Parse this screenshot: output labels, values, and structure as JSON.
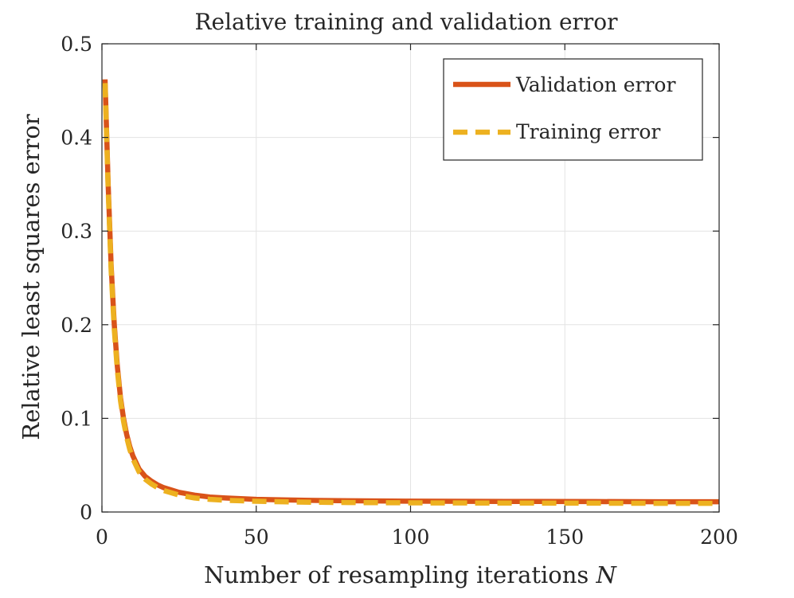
{
  "chart_data": {
    "type": "line",
    "title": "Relative training and validation error",
    "xlabel": "Number of resampling iterations ",
    "xlabel_var": "N",
    "ylabel": "Relative least squares error",
    "xlim": [
      0,
      200
    ],
    "ylim": [
      0,
      0.5
    ],
    "grid": true,
    "legend_position": "top-right",
    "xticks": [
      0,
      50,
      100,
      150,
      200
    ],
    "xtick_labels": [
      "0",
      "50",
      "100",
      "150",
      "200"
    ],
    "yticks": [
      0,
      0.1,
      0.2,
      0.3,
      0.4,
      0.5
    ],
    "ytick_labels": [
      "0",
      "0.1",
      "0.2",
      "0.3",
      "0.4",
      "0.5"
    ],
    "x": [
      1,
      2,
      3,
      4,
      5,
      6,
      7,
      8,
      9,
      10,
      12,
      14,
      16,
      18,
      20,
      25,
      30,
      35,
      40,
      50,
      60,
      70,
      80,
      100,
      120,
      140,
      160,
      180,
      200
    ],
    "series": [
      {
        "name": "Validation error",
        "color": "#D95319",
        "style": "solid",
        "values": [
          0.462,
          0.35,
          0.262,
          0.2,
          0.155,
          0.122,
          0.1,
          0.083,
          0.07,
          0.06,
          0.046,
          0.038,
          0.033,
          0.029,
          0.026,
          0.021,
          0.018,
          0.016,
          0.015,
          0.0135,
          0.0128,
          0.0123,
          0.012,
          0.0116,
          0.0114,
          0.0112,
          0.0111,
          0.011,
          0.011
        ]
      },
      {
        "name": "Training error",
        "color": "#EDB120",
        "style": "dashed",
        "values": [
          0.458,
          0.345,
          0.257,
          0.195,
          0.151,
          0.119,
          0.097,
          0.08,
          0.067,
          0.057,
          0.043,
          0.035,
          0.03,
          0.026,
          0.023,
          0.018,
          0.015,
          0.0135,
          0.0125,
          0.0115,
          0.0108,
          0.0104,
          0.0101,
          0.0098,
          0.0096,
          0.0095,
          0.0094,
          0.0093,
          0.0093
        ]
      }
    ]
  }
}
